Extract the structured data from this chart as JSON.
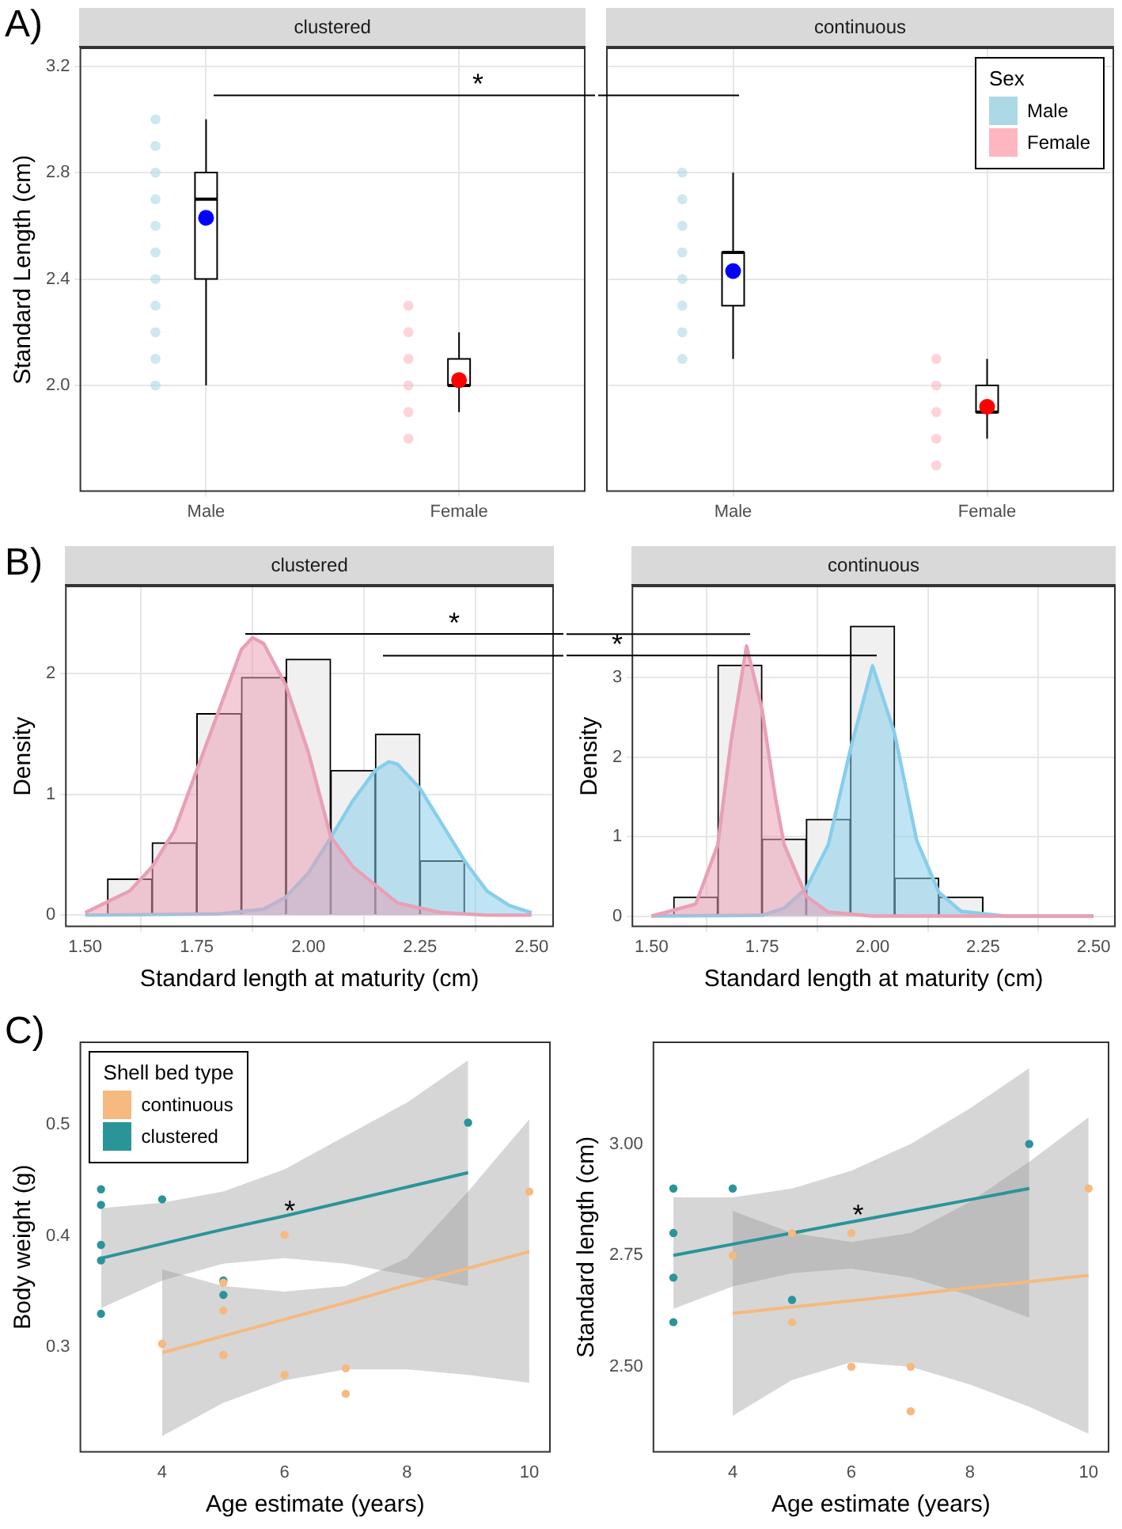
{
  "chart_data": [
    {
      "type": "box",
      "title": "A)",
      "subtitle": "clustered",
      "ylabel": "Standard Length (cm)",
      "categories": [
        "Male",
        "Female"
      ],
      "boxes": [
        {
          "low": 2.0,
          "q1": 2.4,
          "median": 2.7,
          "q3": 2.8,
          "high": 3.0
        },
        {
          "low": 1.9,
          "q1": 2.0,
          "median": 2.0,
          "q3": 2.1,
          "high": 2.2
        }
      ],
      "series": [
        {
          "type": "scatter",
          "colors": [
            "#0000ff",
            "#ff0000"
          ],
          "x": [
            "Male",
            "Female"
          ],
          "values": [
            2.63,
            2.02
          ]
        },
        {
          "type": "scatter",
          "color": "#add8e6",
          "x": [
            "Male",
            "Male",
            "Male",
            "Male",
            "Male",
            "Male",
            "Male",
            "Male",
            "Male",
            "Male",
            "Male"
          ],
          "values": [
            2.0,
            2.1,
            2.2,
            2.3,
            2.4,
            2.5,
            2.6,
            2.7,
            2.8,
            2.9,
            3.0
          ]
        },
        {
          "type": "scatter",
          "color": "#ffb6c1",
          "x": [
            "Female",
            "Female",
            "Female",
            "Female",
            "Female",
            "Female"
          ],
          "values": [
            1.8,
            1.9,
            2.0,
            2.1,
            2.2,
            2.3
          ]
        }
      ],
      "ylim": [
        1.6,
        3.27
      ],
      "yticks": [
        {
          "value": 2,
          "label": "2.0"
        },
        2.4,
        2.8,
        3.2
      ],
      "grid": true,
      "ref_lines": [
        {
          "axis": "y",
          "value": 3.09,
          "label": "*"
        }
      ]
    },
    {
      "type": "box",
      "subtitle": "continuous",
      "legend_title": "Sex",
      "categories": [
        "Male",
        "Female"
      ],
      "boxes": [
        {
          "low": 2.1,
          "q1": 2.3,
          "median": 2.5,
          "q3": 2.5,
          "high": 2.8
        },
        {
          "low": 1.8,
          "q1": 1.9,
          "median": 1.9,
          "q3": 2.0,
          "high": 2.1
        }
      ],
      "series": [
        {
          "type": "scatter",
          "colors": [
            "#0000ff",
            "#ff0000"
          ],
          "x": [
            "Male",
            "Female"
          ],
          "values": [
            2.43,
            1.92
          ]
        },
        {
          "name": "Male",
          "type": "scatter",
          "color": "#add8e6",
          "x": [
            "Male",
            "Male",
            "Male",
            "Male",
            "Male",
            "Male",
            "Male",
            "Male"
          ],
          "values": [
            2.1,
            2.2,
            2.3,
            2.4,
            2.5,
            2.6,
            2.7,
            2.8
          ]
        },
        {
          "name": "Female",
          "type": "scatter",
          "color": "#ffb6c1",
          "x": [
            "Female",
            "Female",
            "Female",
            "Female",
            "Female"
          ],
          "values": [
            1.7,
            1.8,
            1.9,
            2.0,
            2.1
          ]
        }
      ],
      "ylim": [
        1.6,
        3.27
      ],
      "yticks": [
        2,
        2.4,
        2.8,
        3.2
      ],
      "tick_labels": "x",
      "grid": true,
      "legend": "top right",
      "ref_lines": [
        {
          "axis": "y",
          "value": 3.09
        }
      ]
    },
    {
      "type": "histogram",
      "title": "B)",
      "subtitle": "clustered",
      "xlabel": "Standard length at maturity (cm)",
      "ylabel": "Density",
      "bins": [
        1.55,
        1.65,
        1.75,
        1.85,
        1.95,
        2.05,
        2.15,
        2.25,
        2.35
      ],
      "values": [
        0.3,
        0.6,
        1.67,
        1.97,
        2.12,
        1.2,
        1.5,
        0.45
      ],
      "color": "#f0f0f0",
      "series": [
        {
          "type": "area",
          "color": "#e8a0b5",
          "x": [
            1.5,
            1.6,
            1.65,
            1.7,
            1.75,
            1.8,
            1.85,
            1.875,
            1.9,
            1.95,
            2.0,
            2.05,
            2.1,
            2.2,
            2.3,
            2.4,
            2.5
          ],
          "values": [
            0.02,
            0.2,
            0.4,
            0.7,
            1.2,
            1.7,
            2.2,
            2.3,
            2.25,
            1.9,
            1.35,
            0.65,
            0.4,
            0.1,
            0.02,
            0,
            0
          ]
        },
        {
          "type": "area",
          "color": "#87ceeb",
          "x": [
            1.5,
            1.8,
            1.9,
            1.95,
            2.0,
            2.05,
            2.1,
            2.15,
            2.18,
            2.2,
            2.25,
            2.3,
            2.35,
            2.4,
            2.45,
            2.5
          ],
          "values": [
            0,
            0.01,
            0.05,
            0.15,
            0.35,
            0.64,
            0.95,
            1.2,
            1.27,
            1.25,
            1.05,
            0.75,
            0.45,
            0.2,
            0.08,
            0.02
          ]
        }
      ],
      "xlim": [
        1.455,
        2.55
      ],
      "xticks": [
        {
          "value": 1.5,
          "label": "1.50"
        },
        1.75,
        {
          "value": 2,
          "label": "2.00"
        },
        2.25,
        {
          "value": 2.5,
          "label": "2.50"
        }
      ],
      "ylim": [
        -0.1,
        2.73
      ],
      "yticks": [
        0,
        1,
        2
      ],
      "grid": true,
      "ref_lines": [
        {
          "axis": "y",
          "value": 2.33,
          "label": "*"
        },
        {
          "axis": "y",
          "value": 2.15
        }
      ]
    },
    {
      "type": "histogram",
      "subtitle": "continuous",
      "xlabel": "Standard length at maturity (cm)",
      "ylabel": "Density",
      "bins": [
        1.55,
        1.65,
        1.75,
        1.85,
        1.95,
        2.05,
        2.15,
        2.25
      ],
      "values": [
        0.24,
        3.16,
        0.97,
        1.22,
        3.65,
        0.48,
        0.24
      ],
      "color": "#f0f0f0",
      "series": [
        {
          "type": "area",
          "color": "#e8a0b5",
          "x": [
            1.5,
            1.6,
            1.65,
            1.68,
            1.715,
            1.75,
            1.78,
            1.8,
            1.85,
            1.9,
            2.0,
            2.5
          ],
          "values": [
            0,
            0.15,
            0.9,
            2.2,
            3.4,
            2.6,
            1.5,
            0.9,
            0.25,
            0.05,
            0,
            0
          ]
        },
        {
          "type": "area",
          "color": "#87ceeb",
          "x": [
            1.5,
            1.75,
            1.8,
            1.85,
            1.9,
            1.95,
            2.0,
            2.05,
            2.1,
            2.15,
            2.2,
            2.3,
            2.5
          ],
          "values": [
            0,
            0.01,
            0.1,
            0.35,
            0.9,
            2.1,
            3.15,
            2.3,
            0.95,
            0.3,
            0.06,
            0,
            0
          ]
        }
      ],
      "xlim": [
        1.455,
        2.55
      ],
      "xticks": [
        {
          "value": 1.5,
          "label": "1.50"
        },
        1.75,
        {
          "value": 2,
          "label": "2.00"
        },
        2.25,
        {
          "value": 2.5,
          "label": "2.50"
        }
      ],
      "ylim": [
        -0.14,
        4.16
      ],
      "yticks": [
        0,
        1,
        2,
        3
      ],
      "grid": true,
      "ref_lines": [
        {
          "axis": "y",
          "value": 3.55
        },
        {
          "axis": "y",
          "value": 3.28,
          "label": "*"
        }
      ]
    },
    {
      "type": "scatter",
      "title": "C)",
      "xlabel": "Age estimate (years)",
      "ylabel": "Body weight (g)",
      "legend_title": "Shell bed type",
      "legend": "top left",
      "series": [
        {
          "name": "continuous",
          "type": "scatter",
          "color": "#f6b97f",
          "x": [
            4,
            5,
            5,
            5,
            6,
            6,
            7,
            7,
            10
          ],
          "values": [
            0.303,
            0.358,
            0.333,
            0.293,
            0.401,
            0.275,
            0.281,
            0.258,
            0.44
          ]
        },
        {
          "name": "clustered",
          "type": "scatter",
          "color": "#2a9499",
          "x": [
            3,
            3,
            3,
            3,
            3,
            4,
            5,
            5,
            9
          ],
          "values": [
            0.442,
            0.428,
            0.392,
            0.378,
            0.33,
            0.433,
            0.36,
            0.347,
            0.502
          ]
        },
        {
          "type": "line",
          "color": "#f6b97f",
          "x": [
            4,
            5,
            6,
            7,
            8,
            9,
            10
          ],
          "values": [
            0.295,
            0.31,
            0.325,
            0.34,
            0.356,
            0.371,
            0.386
          ],
          "lower": [
            0.22,
            0.25,
            0.27,
            0.28,
            0.28,
            0.275,
            0.268
          ],
          "upper": [
            0.37,
            0.355,
            0.35,
            0.355,
            0.38,
            0.44,
            0.505
          ]
        },
        {
          "type": "line",
          "color": "#2a9499",
          "x": [
            3,
            4,
            5,
            6,
            7,
            8,
            9
          ],
          "values": [
            0.38,
            0.393,
            0.406,
            0.418,
            0.431,
            0.444,
            0.457
          ],
          "lower": [
            0.335,
            0.36,
            0.375,
            0.38,
            0.375,
            0.365,
            0.355
          ],
          "upper": [
            0.425,
            0.43,
            0.44,
            0.46,
            0.49,
            0.52,
            0.558
          ]
        }
      ],
      "xlim": [
        2.65,
        10.35
      ],
      "xticks": [
        4,
        6,
        8,
        10
      ],
      "ylim": [
        0.205,
        0.575
      ],
      "yticks": [
        0.3,
        0.4,
        0.5
      ],
      "annotations": [
        "*"
      ]
    },
    {
      "type": "scatter",
      "xlabel": "Age estimate (years)",
      "ylabel": "Standard length (cm)",
      "series": [
        {
          "type": "scatter",
          "color": "#f6b97f",
          "x": [
            4,
            5,
            5,
            6,
            6,
            7,
            7,
            10
          ],
          "values": [
            2.75,
            2.8,
            2.6,
            2.8,
            2.5,
            2.5,
            2.4,
            2.9
          ]
        },
        {
          "type": "scatter",
          "color": "#2a9499",
          "x": [
            3,
            3,
            3,
            3,
            4,
            5,
            9
          ],
          "values": [
            2.9,
            2.8,
            2.7,
            2.6,
            2.9,
            2.65,
            3.0
          ]
        },
        {
          "type": "line",
          "color": "#f6b97f",
          "x": [
            4,
            5,
            6,
            7,
            8,
            9,
            10
          ],
          "values": [
            2.62,
            2.634,
            2.648,
            2.662,
            2.677,
            2.691,
            2.705
          ],
          "lower": [
            2.39,
            2.47,
            2.51,
            2.5,
            2.46,
            2.41,
            2.35
          ],
          "upper": [
            2.85,
            2.8,
            2.78,
            2.8,
            2.87,
            2.96,
            3.06
          ]
        },
        {
          "type": "line",
          "color": "#2a9499",
          "x": [
            3,
            4,
            5,
            6,
            7,
            8,
            9
          ],
          "values": [
            2.75,
            2.775,
            2.8,
            2.825,
            2.85,
            2.875,
            2.9
          ],
          "lower": [
            2.63,
            2.68,
            2.71,
            2.72,
            2.7,
            2.66,
            2.61
          ],
          "upper": [
            2.88,
            2.88,
            2.9,
            2.94,
            3.0,
            3.08,
            3.17
          ]
        }
      ],
      "xlim": [
        2.65,
        10.35
      ],
      "xticks": [
        4,
        6,
        8,
        10
      ],
      "ylim": [
        2.307,
        3.23
      ],
      "yticks": [
        {
          "value": 2.5,
          "label": "2.50"
        },
        2.75,
        {
          "value": 3,
          "label": "3.00"
        }
      ],
      "annotations": [
        "*"
      ]
    }
  ]
}
